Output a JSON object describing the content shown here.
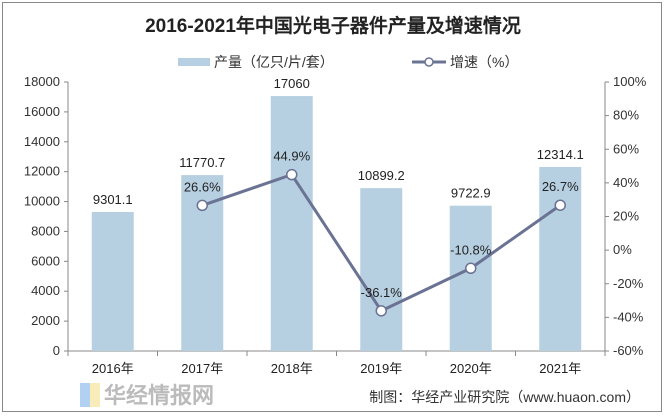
{
  "chart_data": {
    "type": "bar+line",
    "title": "2016-2021年中国光电子器件产量及增速情况",
    "categories": [
      "2016年",
      "2017年",
      "2018年",
      "2019年",
      "2020年",
      "2021年"
    ],
    "series": [
      {
        "name": "产量（亿只/片/套）",
        "type": "bar",
        "axis": "left",
        "values": [
          9301.1,
          11770.7,
          17060,
          10899.2,
          9722.9,
          12314.1
        ],
        "labels": [
          "9301.1",
          "11770.7",
          "17060",
          "10899.2",
          "9722.9",
          "12314.1"
        ],
        "color": "#b7d0e1"
      },
      {
        "name": "增速（%）",
        "type": "line",
        "axis": "right",
        "values": [
          null,
          26.6,
          44.9,
          -36.1,
          -10.8,
          26.7
        ],
        "labels": [
          "",
          "26.6%",
          "44.9%",
          "-36.1%",
          "-10.8%",
          "26.7%"
        ],
        "color": "#6b7394"
      }
    ],
    "ylim": [
      0,
      18000
    ],
    "yticks": [
      0,
      2000,
      4000,
      6000,
      8000,
      10000,
      12000,
      14000,
      16000,
      18000
    ],
    "y2lim": [
      -60,
      100
    ],
    "y2ticks": [
      "-60%",
      "-40%",
      "-20%",
      "0%",
      "20%",
      "40%",
      "60%",
      "80%",
      "100%"
    ],
    "legend": "top-center",
    "grid": false
  },
  "source": "制图：华经产业研究院（www.huaon.com）",
  "watermark": "华经情报网"
}
